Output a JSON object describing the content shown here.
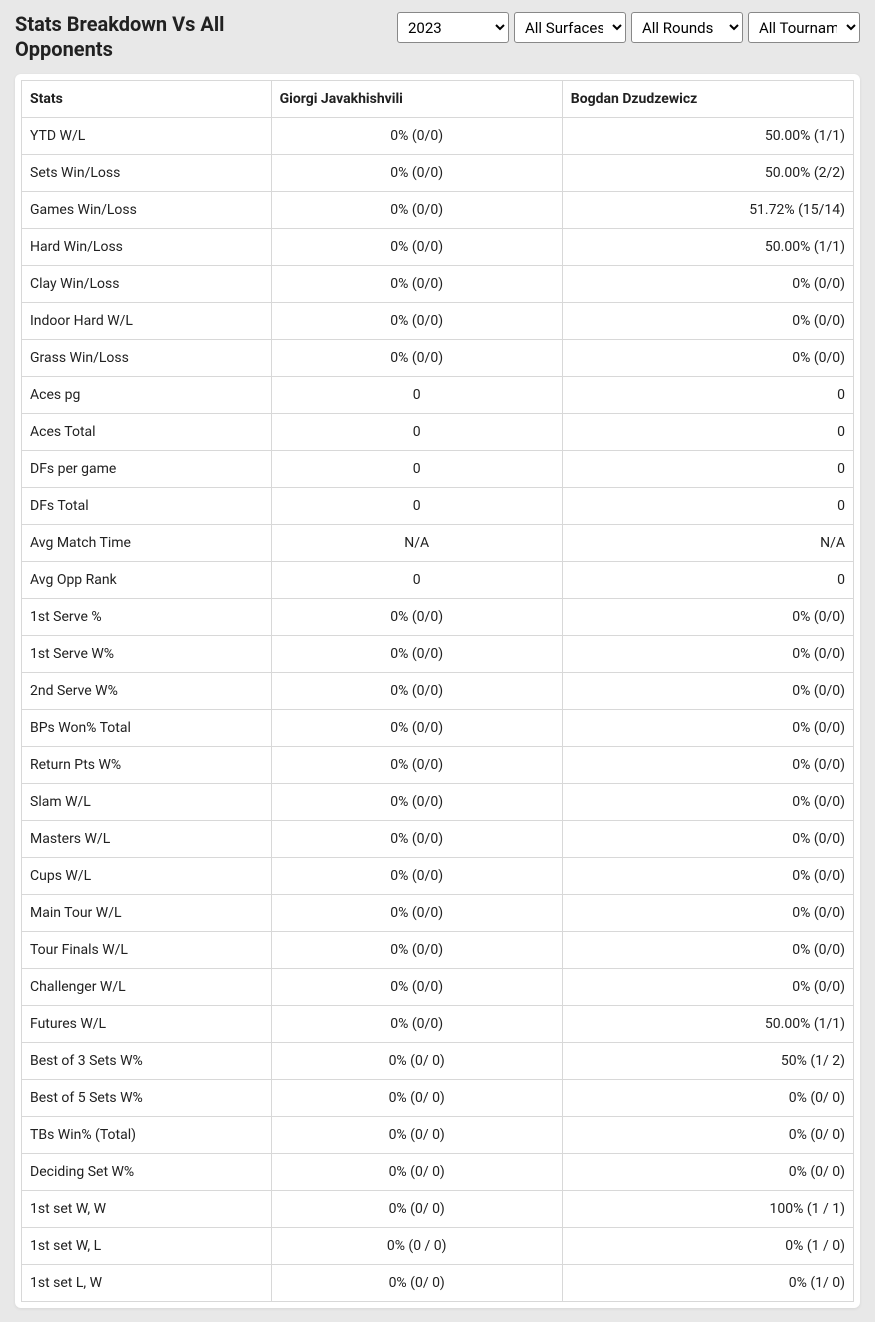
{
  "header": {
    "title": "Stats Breakdown Vs All Opponents"
  },
  "filters": {
    "year": {
      "selected": "2023",
      "options": [
        "2023"
      ]
    },
    "surface": {
      "selected": "All Surfaces",
      "options": [
        "All Surfaces"
      ]
    },
    "rounds": {
      "selected": "All Rounds",
      "options": [
        "All Rounds"
      ]
    },
    "tournaments": {
      "selected": "All Tournaments",
      "options": [
        "All Tournaments"
      ]
    }
  },
  "table": {
    "columns": [
      "Stats",
      "Giorgi Javakhishvili",
      "Bogdan Dzudzewicz"
    ],
    "rows": [
      [
        "YTD W/L",
        "0% (0/0)",
        "50.00% (1/1)"
      ],
      [
        "Sets Win/Loss",
        "0% (0/0)",
        "50.00% (2/2)"
      ],
      [
        "Games Win/Loss",
        "0% (0/0)",
        "51.72% (15/14)"
      ],
      [
        "Hard Win/Loss",
        "0% (0/0)",
        "50.00% (1/1)"
      ],
      [
        "Clay Win/Loss",
        "0% (0/0)",
        "0% (0/0)"
      ],
      [
        "Indoor Hard W/L",
        "0% (0/0)",
        "0% (0/0)"
      ],
      [
        "Grass Win/Loss",
        "0% (0/0)",
        "0% (0/0)"
      ],
      [
        "Aces pg",
        "0",
        "0"
      ],
      [
        "Aces Total",
        "0",
        "0"
      ],
      [
        "DFs per game",
        "0",
        "0"
      ],
      [
        "DFs Total",
        "0",
        "0"
      ],
      [
        "Avg Match Time",
        "N/A",
        "N/A"
      ],
      [
        "Avg Opp Rank",
        "0",
        "0"
      ],
      [
        "1st Serve %",
        "0% (0/0)",
        "0% (0/0)"
      ],
      [
        "1st Serve W%",
        "0% (0/0)",
        "0% (0/0)"
      ],
      [
        "2nd Serve W%",
        "0% (0/0)",
        "0% (0/0)"
      ],
      [
        "BPs Won% Total",
        "0% (0/0)",
        "0% (0/0)"
      ],
      [
        "Return Pts W%",
        "0% (0/0)",
        "0% (0/0)"
      ],
      [
        "Slam W/L",
        "0% (0/0)",
        "0% (0/0)"
      ],
      [
        "Masters W/L",
        "0% (0/0)",
        "0% (0/0)"
      ],
      [
        "Cups W/L",
        "0% (0/0)",
        "0% (0/0)"
      ],
      [
        "Main Tour W/L",
        "0% (0/0)",
        "0% (0/0)"
      ],
      [
        "Tour Finals W/L",
        "0% (0/0)",
        "0% (0/0)"
      ],
      [
        "Challenger W/L",
        "0% (0/0)",
        "0% (0/0)"
      ],
      [
        "Futures W/L",
        "0% (0/0)",
        "50.00% (1/1)"
      ],
      [
        "Best of 3 Sets W%",
        "0% (0/ 0)",
        "50% (1/ 2)"
      ],
      [
        "Best of 5 Sets W%",
        "0% (0/ 0)",
        "0% (0/ 0)"
      ],
      [
        "TBs Win% (Total)",
        "0% (0/ 0)",
        "0% (0/ 0)"
      ],
      [
        "Deciding Set W%",
        "0% (0/ 0)",
        "0% (0/ 0)"
      ],
      [
        "1st set W, W",
        "0% (0/ 0)",
        "100% (1 / 1)"
      ],
      [
        "1st set W, L",
        "0% (0 / 0)",
        "0% (1 / 0)"
      ],
      [
        "1st set L, W",
        "0% (0/ 0)",
        "0% (1/ 0)"
      ]
    ]
  },
  "colors": {
    "page_bg": "#e8e8e8",
    "card_bg": "#ffffff",
    "border": "#d8d8d8",
    "text": "#212121"
  }
}
